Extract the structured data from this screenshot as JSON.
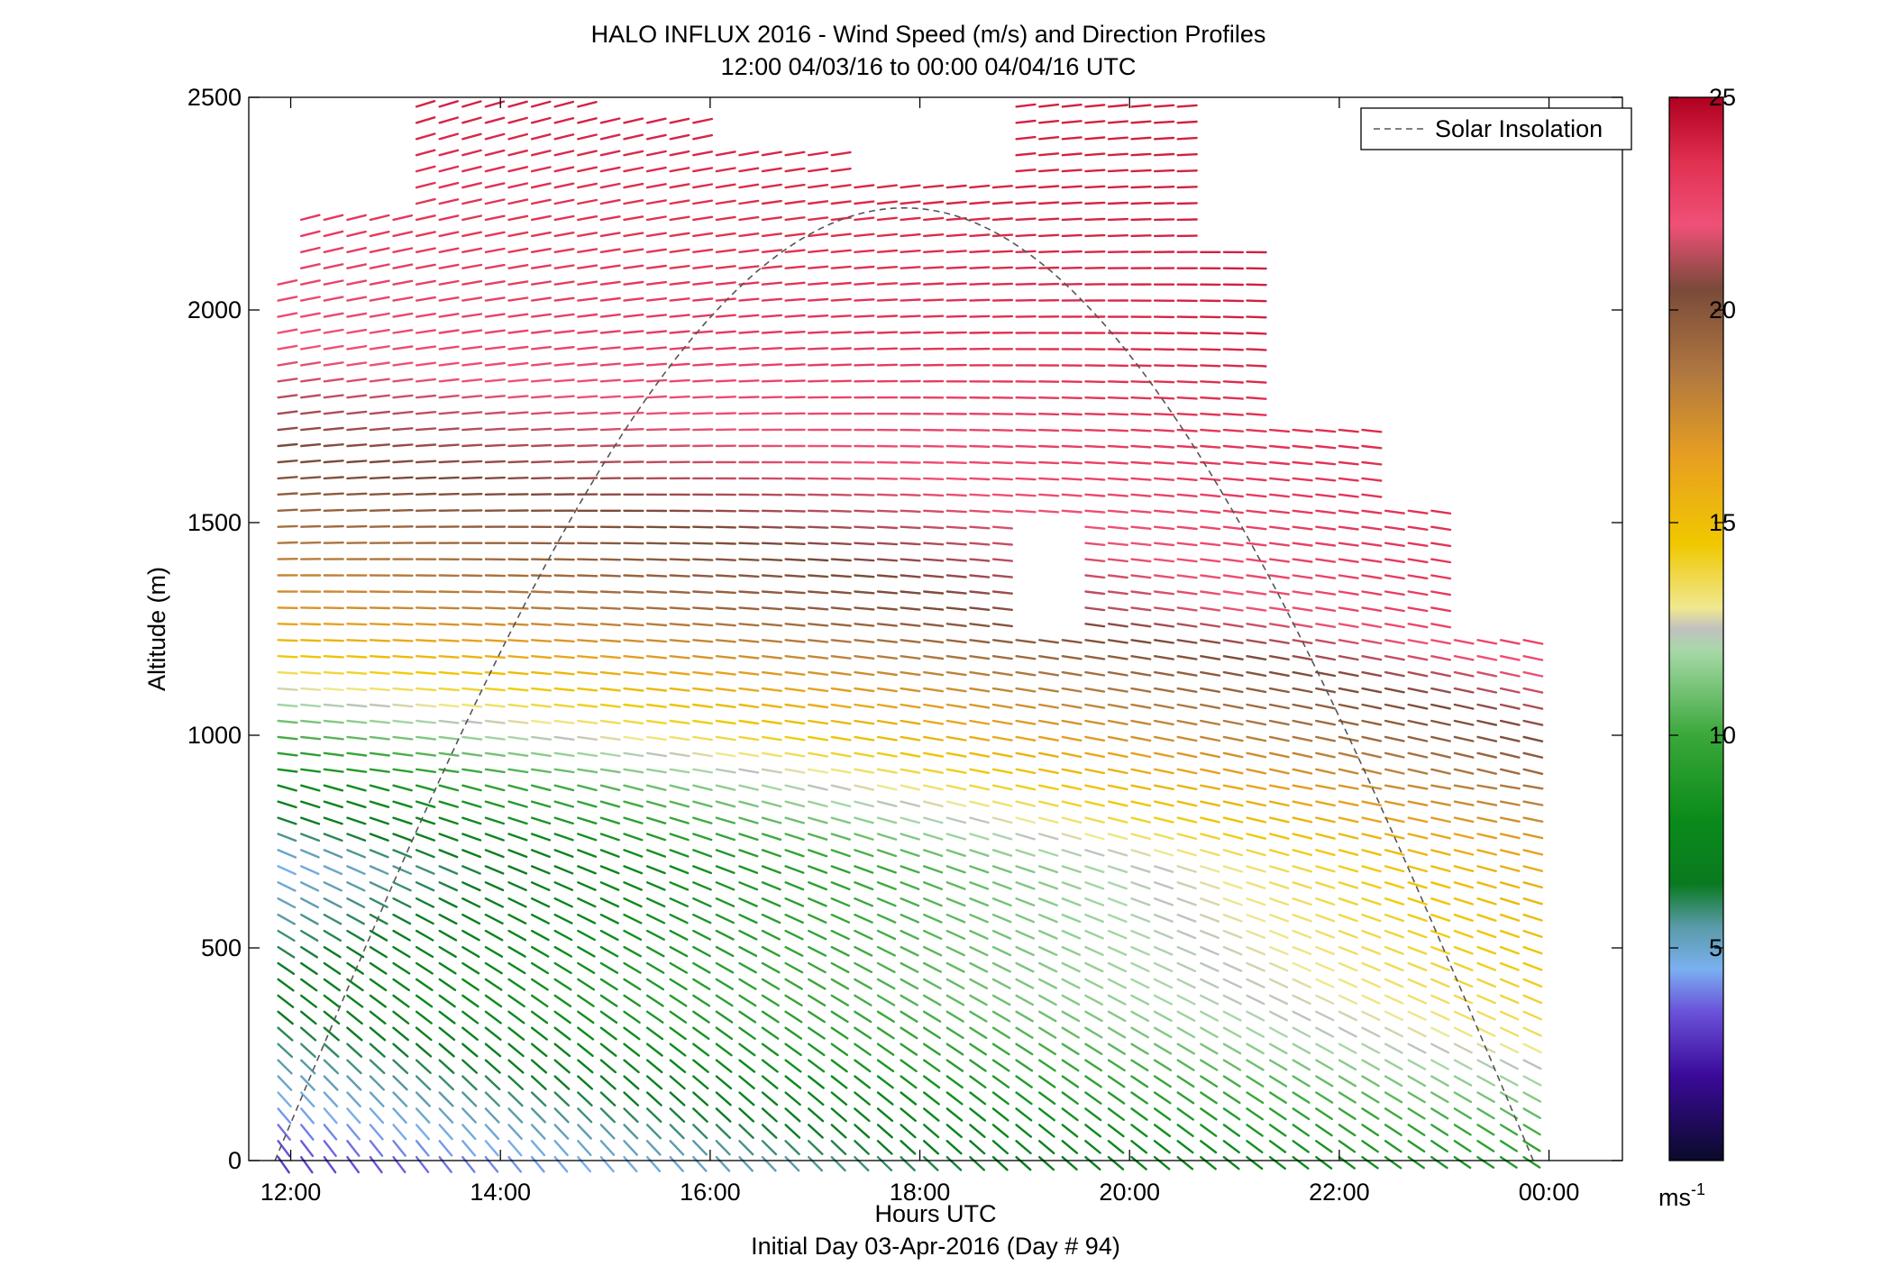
{
  "chart_data": {
    "type": "quiver",
    "title": "HALO INFLUX 2016 - Wind Speed (m/s) and Direction Profiles",
    "subtitle": "12:00 04/03/16 to 00:00 04/04/16  UTC",
    "xlabel": "Hours UTC",
    "xlabel2": "Initial Day 03-Apr-2016 (Day # 94)",
    "ylabel": "Altitude (m)",
    "xlim": [
      11.6,
      24.7
    ],
    "ylim": [
      0,
      2500
    ],
    "x_ticks": [
      12,
      14,
      16,
      18,
      20,
      22,
      24
    ],
    "x_tick_labels": [
      "12:00",
      "14:00",
      "16:00",
      "18:00",
      "20:00",
      "22:00",
      "00:00"
    ],
    "y_ticks": [
      0,
      500,
      1000,
      1500,
      2000,
      2500
    ],
    "y_tick_labels": [
      "0",
      "500",
      "1000",
      "1500",
      "2000",
      "2500"
    ],
    "legend": {
      "label": "Solar Insolation",
      "position": "top-right"
    },
    "solar_curve": {
      "start_hour": 11.85,
      "end_hour": 23.85,
      "peak_altitude": 2240
    },
    "colorbar": {
      "range": [
        0,
        25
      ],
      "ticks": [
        5,
        10,
        15,
        20,
        25
      ],
      "tick_labels": [
        "5",
        "10",
        "15",
        "20",
        "25"
      ],
      "unit_label": "ms",
      "unit_exponent": "-1",
      "stops": [
        [
          0,
          "#0a0a2a"
        ],
        [
          2,
          "#3b0a9a"
        ],
        [
          3.5,
          "#6a52d9"
        ],
        [
          4.5,
          "#7ab0f0"
        ],
        [
          5.5,
          "#5a9aa8"
        ],
        [
          6.5,
          "#0a7a20"
        ],
        [
          8,
          "#0a8a1a"
        ],
        [
          10,
          "#3aa83a"
        ],
        [
          12,
          "#a8d8a8"
        ],
        [
          12.5,
          "#c0c0c0"
        ],
        [
          13,
          "#f0e890"
        ],
        [
          14.5,
          "#f0c800"
        ],
        [
          16.5,
          "#e8a020"
        ],
        [
          18.5,
          "#b07840"
        ],
        [
          20.5,
          "#7a4a3a"
        ],
        [
          22,
          "#f05078"
        ],
        [
          23.5,
          "#e03050"
        ],
        [
          25,
          "#b00020"
        ]
      ]
    },
    "wind_field": {
      "x_start": 11.88,
      "x_end": 23.82,
      "x_step": 0.22,
      "alt_step": 38,
      "arrow_length_hours": 0.18,
      "columns": [
        {
          "upto": 12.05,
          "top": 2060
        },
        {
          "upto": 13.0,
          "top": 2220
        },
        {
          "upto": 14.8,
          "top": 2490
        },
        {
          "upto": 16.0,
          "top": 2460
        },
        {
          "upto": 17.3,
          "top": 2400
        },
        {
          "upto": 18.9,
          "top": 2300
        },
        {
          "upto": 20.5,
          "top": 2480
        },
        {
          "upto": 21.3,
          "top": 2170
        },
        {
          "upto": 22.3,
          "top": 1720
        },
        {
          "upto": 23.0,
          "top": 1560
        },
        {
          "upto": 23.9,
          "top": 1260
        }
      ],
      "speed_profile_early": [
        [
          0,
          3.0
        ],
        [
          400,
          7.0
        ],
        [
          700,
          4.5
        ],
        [
          900,
          8.0
        ],
        [
          1100,
          12.5
        ],
        [
          1300,
          17.0
        ],
        [
          1600,
          20.0
        ],
        [
          1900,
          22.0
        ],
        [
          2500,
          24.0
        ]
      ],
      "speed_profile_late": [
        [
          0,
          9.0
        ],
        [
          300,
          13.5
        ],
        [
          700,
          16.0
        ],
        [
          1000,
          20.5
        ],
        [
          1300,
          23.5
        ],
        [
          2000,
          24.5
        ],
        [
          2500,
          24.0
        ]
      ]
    }
  }
}
